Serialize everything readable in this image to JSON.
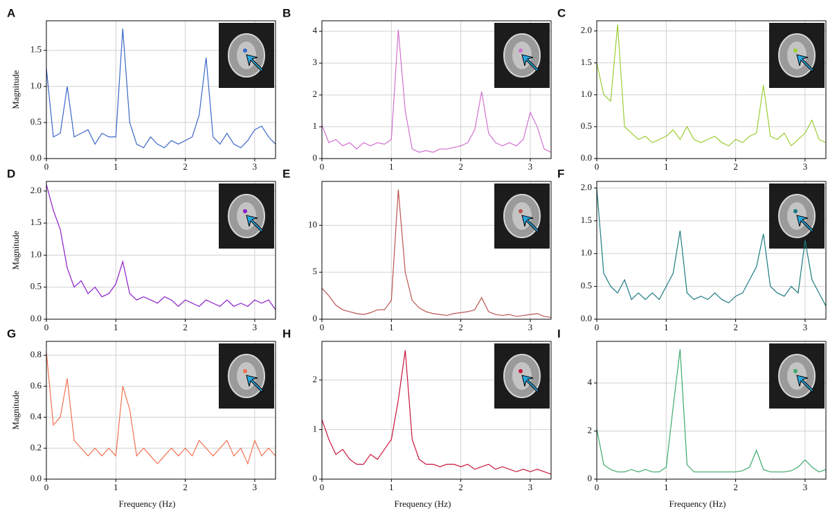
{
  "chart_data": [
    {
      "type": "line",
      "panel": "A",
      "ylabel": "Magnitude",
      "color": "#3a66c8",
      "grid": true,
      "x": [
        0,
        0.1,
        0.2,
        0.3,
        0.4,
        0.5,
        0.6,
        0.7,
        0.8,
        0.9,
        1.0,
        1.1,
        1.2,
        1.3,
        1.4,
        1.5,
        1.6,
        1.7,
        1.8,
        1.9,
        2.0,
        2.1,
        2.2,
        2.3,
        2.4,
        2.5,
        2.6,
        2.7,
        2.8,
        2.9,
        3.0,
        3.1,
        3.2,
        3.3
      ],
      "values": [
        1.25,
        0.3,
        0.35,
        1.0,
        0.3,
        0.35,
        0.4,
        0.2,
        0.35,
        0.3,
        0.3,
        1.8,
        0.5,
        0.2,
        0.15,
        0.3,
        0.2,
        0.15,
        0.25,
        0.2,
        0.25,
        0.3,
        0.6,
        1.4,
        0.3,
        0.2,
        0.35,
        0.2,
        0.15,
        0.25,
        0.4,
        0.45,
        0.3,
        0.2
      ],
      "xlim": [
        0,
        3.3
      ],
      "xticks": [
        0,
        1,
        2,
        3
      ],
      "ylim": [
        0,
        1.91
      ],
      "yticks": [
        {
          "value": 0,
          "label": "0.0"
        },
        0.5,
        {
          "value": 1,
          "label": "1.0"
        },
        1.5
      ]
    },
    {
      "type": "line",
      "panel": "B",
      "color": "#d070d0",
      "grid": true,
      "x": [
        0,
        0.1,
        0.2,
        0.3,
        0.4,
        0.5,
        0.6,
        0.7,
        0.8,
        0.9,
        1.0,
        1.1,
        1.2,
        1.3,
        1.4,
        1.5,
        1.6,
        1.7,
        1.8,
        1.9,
        2.0,
        2.1,
        2.2,
        2.3,
        2.4,
        2.5,
        2.6,
        2.7,
        2.8,
        2.9,
        3.0,
        3.1,
        3.2,
        3.3
      ],
      "values": [
        1.05,
        0.5,
        0.6,
        0.4,
        0.5,
        0.3,
        0.5,
        0.4,
        0.5,
        0.45,
        0.6,
        4.05,
        1.5,
        0.3,
        0.2,
        0.25,
        0.2,
        0.3,
        0.3,
        0.35,
        0.4,
        0.5,
        0.9,
        2.1,
        0.8,
        0.5,
        0.4,
        0.5,
        0.4,
        0.6,
        1.45,
        1.0,
        0.3,
        0.2
      ],
      "xlim": [
        0,
        3.3
      ],
      "xticks": [
        0,
        1,
        2,
        3
      ],
      "ylim": [
        0,
        4.33
      ],
      "yticks": [
        0,
        1,
        2,
        3,
        4
      ]
    },
    {
      "type": "line",
      "panel": "C",
      "color": "#9acd32",
      "grid": true,
      "x": [
        0,
        0.1,
        0.2,
        0.3,
        0.4,
        0.5,
        0.6,
        0.7,
        0.8,
        0.9,
        1.0,
        1.1,
        1.2,
        1.3,
        1.4,
        1.5,
        1.6,
        1.7,
        1.8,
        1.9,
        2.0,
        2.1,
        2.2,
        2.3,
        2.4,
        2.5,
        2.6,
        2.7,
        2.8,
        2.9,
        3.0,
        3.1,
        3.2,
        3.3
      ],
      "values": [
        1.5,
        1.0,
        0.9,
        2.1,
        0.5,
        0.4,
        0.3,
        0.35,
        0.25,
        0.3,
        0.35,
        0.45,
        0.3,
        0.5,
        0.3,
        0.25,
        0.3,
        0.35,
        0.25,
        0.2,
        0.3,
        0.25,
        0.35,
        0.4,
        1.15,
        0.35,
        0.3,
        0.4,
        0.2,
        0.3,
        0.4,
        0.6,
        0.3,
        0.25
      ],
      "xlim": [
        0,
        3.3
      ],
      "xticks": [
        0,
        1,
        2,
        3
      ],
      "ylim": [
        0,
        2.16
      ],
      "yticks": [
        {
          "value": 0,
          "label": "0.0"
        },
        0.5,
        {
          "value": 1,
          "label": "1.0"
        },
        1.5,
        {
          "value": 2,
          "label": "2.0"
        }
      ]
    },
    {
      "type": "line",
      "panel": "D",
      "ylabel": "Magnitude",
      "color": "#8a1cc8",
      "grid": true,
      "x": [
        0,
        0.1,
        0.2,
        0.3,
        0.4,
        0.5,
        0.6,
        0.7,
        0.8,
        0.9,
        1.0,
        1.1,
        1.2,
        1.3,
        1.4,
        1.5,
        1.6,
        1.7,
        1.8,
        1.9,
        2.0,
        2.1,
        2.2,
        2.3,
        2.4,
        2.5,
        2.6,
        2.7,
        2.8,
        2.9,
        3.0,
        3.1,
        3.2,
        3.3
      ],
      "values": [
        2.1,
        1.7,
        1.4,
        0.8,
        0.5,
        0.6,
        0.4,
        0.5,
        0.35,
        0.4,
        0.55,
        0.9,
        0.4,
        0.3,
        0.35,
        0.3,
        0.25,
        0.35,
        0.3,
        0.2,
        0.3,
        0.25,
        0.2,
        0.3,
        0.25,
        0.2,
        0.3,
        0.2,
        0.25,
        0.2,
        0.3,
        0.25,
        0.3,
        0.15
      ],
      "xlim": [
        0,
        3.3
      ],
      "xticks": [
        0,
        1,
        2,
        3
      ],
      "ylim": [
        0,
        2.15
      ],
      "yticks": [
        {
          "value": 0,
          "label": "0.0"
        },
        0.5,
        {
          "value": 1,
          "label": "1.0"
        },
        1.5,
        {
          "value": 2,
          "label": "2.0"
        }
      ]
    },
    {
      "type": "line",
      "panel": "E",
      "color": "#b85450",
      "grid": true,
      "x": [
        0,
        0.1,
        0.2,
        0.3,
        0.4,
        0.5,
        0.6,
        0.7,
        0.8,
        0.9,
        1.0,
        1.1,
        1.2,
        1.3,
        1.4,
        1.5,
        1.6,
        1.7,
        1.8,
        1.9,
        2.0,
        2.1,
        2.2,
        2.3,
        2.4,
        2.5,
        2.6,
        2.7,
        2.8,
        2.9,
        3.0,
        3.1,
        3.2,
        3.3
      ],
      "values": [
        3.3,
        2.5,
        1.5,
        1.0,
        0.8,
        0.6,
        0.5,
        0.7,
        1.0,
        1.0,
        2.0,
        13.8,
        5.0,
        2.0,
        1.2,
        0.8,
        0.6,
        0.5,
        0.4,
        0.6,
        0.7,
        0.8,
        1.0,
        2.3,
        0.8,
        0.5,
        0.4,
        0.5,
        0.3,
        0.4,
        0.5,
        0.6,
        0.3,
        0.2
      ],
      "xlim": [
        0,
        3.3
      ],
      "xticks": [
        0,
        1,
        2,
        3
      ],
      "ylim": [
        0,
        14.67
      ],
      "yticks": [
        0,
        5,
        10
      ]
    },
    {
      "type": "line",
      "panel": "F",
      "color": "#1a7a80",
      "grid": true,
      "x": [
        0,
        0.1,
        0.2,
        0.3,
        0.4,
        0.5,
        0.6,
        0.7,
        0.8,
        0.9,
        1.0,
        1.1,
        1.2,
        1.3,
        1.4,
        1.5,
        1.6,
        1.7,
        1.8,
        1.9,
        2.0,
        2.1,
        2.2,
        2.3,
        2.4,
        2.5,
        2.6,
        2.7,
        2.8,
        2.9,
        3.0,
        3.1,
        3.2,
        3.3
      ],
      "values": [
        2.0,
        0.7,
        0.5,
        0.4,
        0.6,
        0.3,
        0.4,
        0.3,
        0.4,
        0.3,
        0.5,
        0.7,
        1.35,
        0.4,
        0.3,
        0.35,
        0.3,
        0.4,
        0.3,
        0.25,
        0.35,
        0.4,
        0.6,
        0.8,
        1.3,
        0.5,
        0.4,
        0.35,
        0.5,
        0.4,
        1.2,
        0.6,
        0.4,
        0.2
      ],
      "xlim": [
        0,
        3.3
      ],
      "xticks": [
        0,
        1,
        2,
        3
      ],
      "ylim": [
        0,
        2.1
      ],
      "yticks": [
        {
          "value": 0,
          "label": "0.0"
        },
        0.5,
        {
          "value": 1,
          "label": "1.0"
        },
        1.5,
        {
          "value": 2,
          "label": "2.0"
        }
      ]
    },
    {
      "type": "line",
      "panel": "G",
      "ylabel": "Magnitude",
      "xlabel": "Frequency (Hz)",
      "color": "#f07050",
      "grid": true,
      "x": [
        0,
        0.1,
        0.2,
        0.3,
        0.4,
        0.5,
        0.6,
        0.7,
        0.8,
        0.9,
        1.0,
        1.1,
        1.2,
        1.3,
        1.4,
        1.5,
        1.6,
        1.7,
        1.8,
        1.9,
        2.0,
        2.1,
        2.2,
        2.3,
        2.4,
        2.5,
        2.6,
        2.7,
        2.8,
        2.9,
        3.0,
        3.1,
        3.2,
        3.3
      ],
      "values": [
        0.82,
        0.35,
        0.4,
        0.65,
        0.25,
        0.2,
        0.15,
        0.2,
        0.15,
        0.2,
        0.15,
        0.6,
        0.45,
        0.15,
        0.2,
        0.15,
        0.1,
        0.15,
        0.2,
        0.15,
        0.2,
        0.15,
        0.25,
        0.2,
        0.15,
        0.2,
        0.25,
        0.15,
        0.2,
        0.1,
        0.25,
        0.15,
        0.2,
        0.15
      ],
      "xlim": [
        0,
        3.3
      ],
      "xticks": [
        0,
        1,
        2,
        3
      ],
      "ylim": [
        0,
        0.89
      ],
      "yticks": [
        {
          "value": 0,
          "label": "0.0"
        },
        0.2,
        0.4,
        0.6,
        0.8
      ]
    },
    {
      "type": "line",
      "panel": "H",
      "xlabel": "Frequency (Hz)",
      "color": "#c8143c",
      "grid": true,
      "x": [
        0,
        0.1,
        0.2,
        0.3,
        0.4,
        0.5,
        0.6,
        0.7,
        0.8,
        0.9,
        1.0,
        1.1,
        1.2,
        1.3,
        1.4,
        1.5,
        1.6,
        1.7,
        1.8,
        1.9,
        2.0,
        2.1,
        2.2,
        2.3,
        2.4,
        2.5,
        2.6,
        2.7,
        2.8,
        2.9,
        3.0,
        3.1,
        3.2,
        3.3
      ],
      "values": [
        1.2,
        0.8,
        0.5,
        0.6,
        0.4,
        0.3,
        0.3,
        0.5,
        0.4,
        0.6,
        0.8,
        1.6,
        2.6,
        0.8,
        0.4,
        0.3,
        0.3,
        0.25,
        0.3,
        0.3,
        0.25,
        0.3,
        0.2,
        0.25,
        0.3,
        0.2,
        0.25,
        0.2,
        0.15,
        0.2,
        0.15,
        0.2,
        0.15,
        0.1
      ],
      "xlim": [
        0,
        3.3
      ],
      "xticks": [
        0,
        1,
        2,
        3
      ],
      "ylim": [
        0,
        2.78
      ],
      "yticks": [
        0,
        1,
        2
      ]
    },
    {
      "type": "line",
      "panel": "I",
      "xlabel": "Frequency (Hz)",
      "color": "#3caa6a",
      "grid": true,
      "x": [
        0,
        0.1,
        0.2,
        0.3,
        0.4,
        0.5,
        0.6,
        0.7,
        0.8,
        0.9,
        1.0,
        1.1,
        1.2,
        1.3,
        1.4,
        1.5,
        1.6,
        1.7,
        1.8,
        1.9,
        2.0,
        2.1,
        2.2,
        2.3,
        2.4,
        2.5,
        2.6,
        2.7,
        2.8,
        2.9,
        3.0,
        3.1,
        3.2,
        3.3
      ],
      "values": [
        2.1,
        0.6,
        0.4,
        0.3,
        0.3,
        0.4,
        0.3,
        0.4,
        0.3,
        0.3,
        0.5,
        3.0,
        5.4,
        0.6,
        0.3,
        0.3,
        0.3,
        0.3,
        0.3,
        0.3,
        0.3,
        0.35,
        0.5,
        1.2,
        0.4,
        0.3,
        0.3,
        0.3,
        0.35,
        0.5,
        0.8,
        0.5,
        0.3,
        0.4
      ],
      "xlim": [
        0,
        3.3
      ],
      "xticks": [
        0,
        1,
        2,
        3
      ],
      "ylim": [
        0,
        5.73
      ],
      "yticks": [
        0,
        2,
        4
      ]
    }
  ]
}
